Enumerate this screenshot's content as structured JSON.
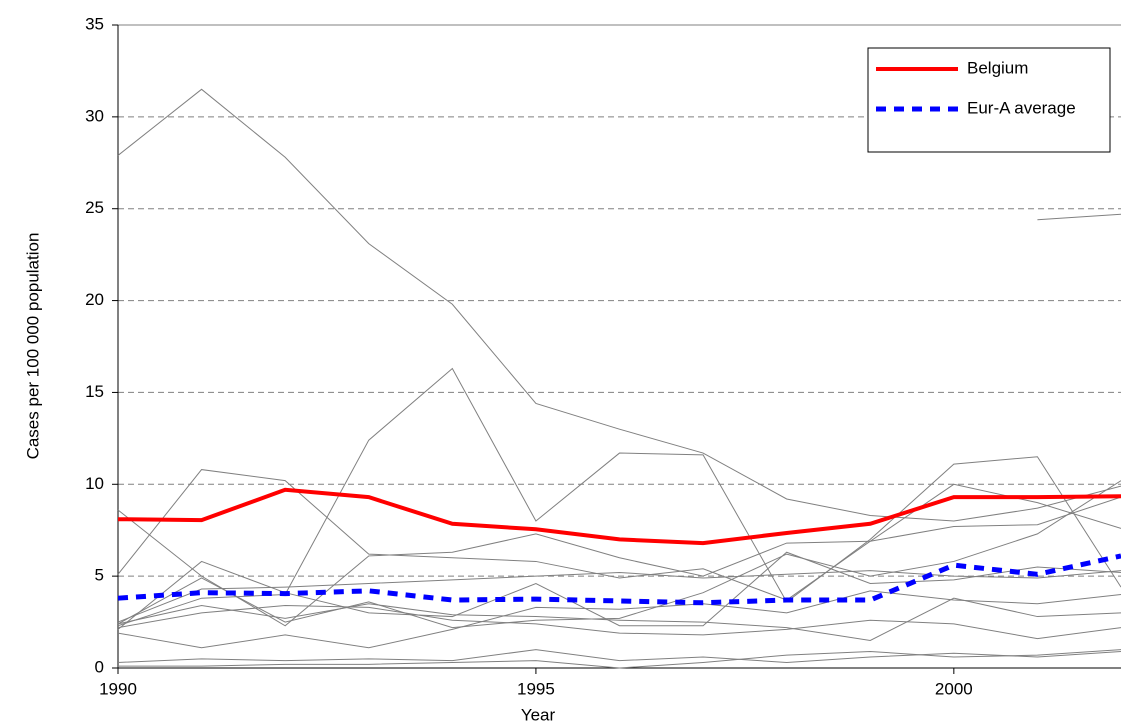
{
  "chart_data": {
    "type": "line",
    "xlabel": "Year",
    "ylabel": "Cases per 100 000 population",
    "x": [
      1990,
      1991,
      1992,
      1993,
      1994,
      1995,
      1996,
      1997,
      1998,
      1999,
      2000,
      2001,
      2002
    ],
    "xlim": [
      1990,
      2002
    ],
    "xticks": [
      1990,
      1995,
      2000
    ],
    "ylim": [
      0,
      35
    ],
    "yticks": [
      0,
      5,
      10,
      15,
      20,
      25,
      30,
      35
    ],
    "grid": true,
    "legend": "upper right",
    "series": [
      {
        "color": "#808080",
        "values": [
          27.9,
          31.5,
          27.8,
          23.1,
          19.8,
          14.4,
          13.0,
          11.7,
          9.2,
          8.3,
          8.0,
          8.7,
          9.9
        ]
      },
      {
        "color": "#808080",
        "values": [
          2.3,
          3.8,
          4.0,
          12.4,
          16.3,
          8.0,
          11.7,
          11.6,
          3.6,
          7.0,
          11.1,
          11.5,
          4.4
        ]
      },
      {
        "color": "#808080",
        "values": [
          8.6,
          5.0,
          2.3,
          6.1,
          6.3,
          7.3,
          6.0,
          5.0,
          6.8,
          6.9,
          10.0,
          9.0,
          7.6
        ]
      },
      {
        "color": "#808080",
        "values": [
          5.1,
          10.8,
          10.2,
          6.2,
          6.0,
          5.8,
          4.9,
          5.4,
          3.7,
          6.9,
          7.7,
          7.8,
          9.3
        ]
      },
      {
        "color": "#808080",
        "values": [
          null,
          null,
          null,
          null,
          null,
          null,
          null,
          null,
          null,
          null,
          null,
          24.4,
          24.7
        ]
      },
      {
        "color": "#808080",
        "values": [
          2.1,
          5.8,
          4.1,
          3.0,
          2.8,
          4.6,
          2.3,
          2.3,
          6.3,
          4.6,
          4.8,
          5.5,
          5.2
        ]
      },
      {
        "color": "#808080",
        "values": [
          2.4,
          4.9,
          2.5,
          3.6,
          2.2,
          2.6,
          2.7,
          4.1,
          6.2,
          5.0,
          5.8,
          7.3,
          10.2
        ]
      },
      {
        "color": "#808080",
        "values": [
          1.9,
          1.1,
          1.8,
          1.1,
          2.1,
          3.3,
          3.2,
          3.5,
          3.0,
          4.2,
          3.7,
          3.5,
          4.0
        ]
      },
      {
        "color": "#808080",
        "values": [
          2.4,
          3.4,
          2.7,
          3.5,
          2.9,
          2.8,
          2.6,
          2.5,
          2.2,
          1.5,
          3.8,
          2.8,
          3.0
        ]
      },
      {
        "color": "#808080",
        "values": [
          2.2,
          3.0,
          3.4,
          3.3,
          2.6,
          2.4,
          1.9,
          1.8,
          2.1,
          2.6,
          2.4,
          1.6,
          2.2
        ]
      },
      {
        "color": "#808080",
        "values": [
          0.3,
          0.5,
          0.4,
          0.5,
          0.4,
          1.0,
          0.4,
          0.6,
          0.3,
          0.6,
          0.8,
          0.6,
          0.9
        ]
      },
      {
        "color": "#808080",
        "values": [
          0.1,
          0.1,
          0.2,
          0.2,
          0.3,
          0.4,
          0.0,
          0.3,
          0.7,
          0.9,
          0.6,
          0.7,
          1.0
        ]
      },
      {
        "color": "#808080",
        "values": [
          2.5,
          4.3,
          4.4,
          4.6,
          4.8,
          5.0,
          5.2,
          4.9,
          5.1,
          5.3,
          5.0,
          4.9,
          5.3
        ]
      },
      {
        "name": "Belgium",
        "color": "#ff0000",
        "line_width": 4,
        "values": [
          8.1,
          8.05,
          9.7,
          9.3,
          7.85,
          7.55,
          7.0,
          6.8,
          7.35,
          7.85,
          9.3,
          9.3,
          9.35
        ]
      },
      {
        "name": "Eur-A average",
        "color": "#0000ff",
        "line_width": 5,
        "dashed": true,
        "values": [
          3.8,
          4.1,
          4.05,
          4.2,
          3.7,
          3.75,
          3.65,
          3.55,
          3.7,
          3.7,
          5.6,
          5.1,
          6.1
        ]
      }
    ]
  }
}
